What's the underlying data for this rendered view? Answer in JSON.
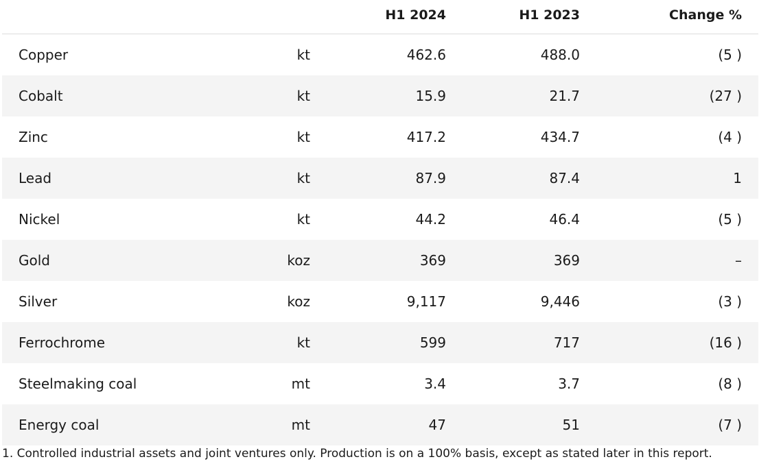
{
  "table": {
    "headers": {
      "name": "",
      "unit": "",
      "h1_2024": "H1 2024",
      "h1_2023": "H1 2023",
      "change": "Change %"
    },
    "rows": [
      {
        "name": "Copper",
        "unit": "kt",
        "h1_2024": "462.6",
        "h1_2023": "488.0",
        "change": "(5 )"
      },
      {
        "name": "Cobalt",
        "unit": "kt",
        "h1_2024": "15.9",
        "h1_2023": "21.7",
        "change": "(27 )"
      },
      {
        "name": "Zinc",
        "unit": "kt",
        "h1_2024": "417.2",
        "h1_2023": "434.7",
        "change": "(4 )"
      },
      {
        "name": "Lead",
        "unit": "kt",
        "h1_2024": "87.9",
        "h1_2023": "87.4",
        "change": "1"
      },
      {
        "name": "Nickel",
        "unit": "kt",
        "h1_2024": "44.2",
        "h1_2023": "46.4",
        "change": "(5 )"
      },
      {
        "name": "Gold",
        "unit": "koz",
        "h1_2024": "369",
        "h1_2023": "369",
        "change": "–"
      },
      {
        "name": "Silver",
        "unit": "koz",
        "h1_2024": "9,117",
        "h1_2023": "9,446",
        "change": "(3 )"
      },
      {
        "name": "Ferrochrome",
        "unit": "kt",
        "h1_2024": "599",
        "h1_2023": "717",
        "change": "(16 )"
      },
      {
        "name": "Steelmaking coal",
        "unit": "mt",
        "h1_2024": "3.4",
        "h1_2023": "3.7",
        "change": "(8 )"
      },
      {
        "name": "Energy coal",
        "unit": "mt",
        "h1_2024": "47",
        "h1_2023": "51",
        "change": "(7 )"
      }
    ]
  },
  "footnote": "1. Controlled industrial assets and joint ventures only. Production is on a 100% basis, except as stated later in this report."
}
